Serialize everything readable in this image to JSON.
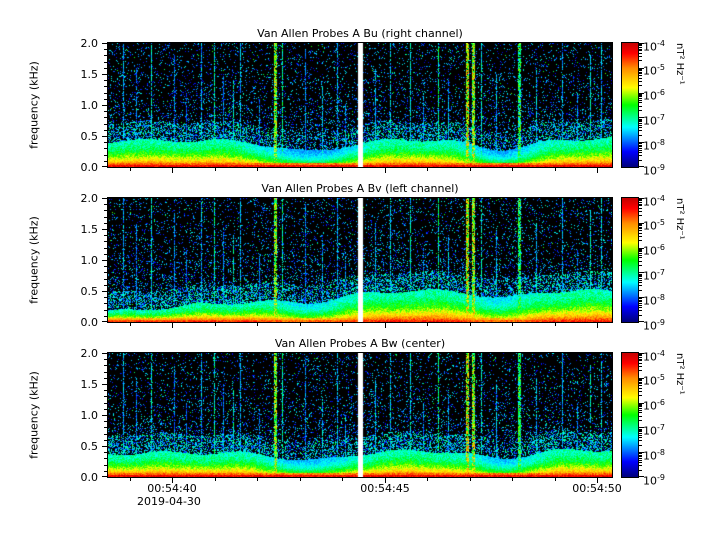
{
  "figure": {
    "background": "#ffffff",
    "text_color": "#000000"
  },
  "panels": [
    {
      "id": "bu",
      "title": "Van Allen Probes A Bu (right channel)"
    },
    {
      "id": "bv",
      "title": "Van Allen Probes A Bv (left channel)"
    },
    {
      "id": "bw",
      "title": "Van Allen Probes A Bw (center)"
    }
  ],
  "axes": {
    "ylabel": "frequency (kHz)",
    "yticks": [
      "2.0",
      "1.5",
      "1.0",
      "0.5",
      "0.0"
    ],
    "xticks": [
      "00:54:40",
      "00:54:45",
      "00:54:50"
    ],
    "date_label": "2019-04-30"
  },
  "colorbar": {
    "base": "10",
    "exponents": [
      "-4",
      "-5",
      "-6",
      "-7",
      "-8",
      "-9"
    ],
    "unit": "nT² Hz⁻¹",
    "scale": "log",
    "colormap": "jet",
    "min_color": "#000080",
    "max_color": "#c80000"
  },
  "chart_data": {
    "type": "heatmap",
    "subtype": "spectrogram",
    "n_panels": 3,
    "ylabel": "frequency (kHz)",
    "ylim": [
      0.0,
      2.0
    ],
    "ytick_values": [
      0.0,
      0.5,
      1.0,
      1.5,
      2.0
    ],
    "x_date": "2019-04-30",
    "x_ticks": [
      "00:54:40",
      "00:54:45",
      "00:54:50"
    ],
    "x_minor_interval_s": 1,
    "x_range": [
      "00:54:38.5",
      "00:54:50.4"
    ],
    "z_units": "nT² Hz⁻¹",
    "z_lim": [
      1e-09,
      0.0001
    ],
    "z_scale": "log",
    "colormap": "jet",
    "data_gap_frac": 0.5,
    "data_gap_time": "00:54:44.4",
    "stripes": [
      [
        0.03,
        0.35,
        2.0
      ],
      [
        0.055,
        0.3,
        1.6
      ],
      [
        0.085,
        0.45,
        2.0
      ],
      [
        0.13,
        0.3,
        1.8
      ],
      [
        0.155,
        0.25,
        1.2
      ],
      [
        0.185,
        0.35,
        2.0
      ],
      [
        0.21,
        0.5,
        2.0
      ],
      [
        0.228,
        0.3,
        1.5
      ],
      [
        0.248,
        0.45,
        1.4
      ],
      [
        0.262,
        0.35,
        2.0
      ],
      [
        0.3,
        0.3,
        1.1
      ],
      [
        0.332,
        0.75,
        2.0
      ],
      [
        0.345,
        0.5,
        2.0
      ],
      [
        0.39,
        0.3,
        1.9
      ],
      [
        0.425,
        0.4,
        1.3
      ],
      [
        0.455,
        0.35,
        2.0
      ],
      [
        0.47,
        0.3,
        1.0
      ],
      [
        0.53,
        0.35,
        1.6
      ],
      [
        0.56,
        0.4,
        2.0
      ],
      [
        0.6,
        0.45,
        2.0
      ],
      [
        0.625,
        0.3,
        1.2
      ],
      [
        0.655,
        0.55,
        2.0
      ],
      [
        0.675,
        0.35,
        1.4
      ],
      [
        0.713,
        0.85,
        2.0
      ],
      [
        0.724,
        0.8,
        2.0
      ],
      [
        0.74,
        0.45,
        2.0
      ],
      [
        0.77,
        0.35,
        1.5
      ],
      [
        0.815,
        0.6,
        2.0
      ],
      [
        0.85,
        0.4,
        1.6
      ],
      [
        0.9,
        0.35,
        2.0
      ],
      [
        0.93,
        0.3,
        1.2
      ],
      [
        0.957,
        0.45,
        1.8
      ],
      [
        0.978,
        0.4,
        2.0
      ]
    ],
    "panels": [
      {
        "title": "Van Allen Probes A Bu (right channel)",
        "seed": 1337,
        "band_top": [
          0.42,
          0.46
        ],
        "band_ramp": 1.0,
        "hot": 1.0,
        "dips": [
          [
            0.4,
            0.1,
            0.8
          ],
          [
            0.78,
            0.08,
            0.75
          ]
        ]
      },
      {
        "title": "Van Allen Probes A Bv (left channel)",
        "seed": 4242,
        "band_top": [
          0.16,
          0.5
        ],
        "band_ramp": 0.55,
        "hot": 0.9,
        "dips": [
          [
            0.4,
            0.08,
            0.45
          ],
          [
            0.78,
            0.06,
            0.45
          ]
        ]
      },
      {
        "title": "Van Allen Probes A Bw (center)",
        "seed": 9001,
        "band_top": [
          0.38,
          0.44
        ],
        "band_ramp": 1.0,
        "hot": 1.0,
        "dips": [
          [
            0.4,
            0.09,
            0.65
          ],
          [
            0.78,
            0.07,
            0.6
          ]
        ]
      }
    ]
  }
}
